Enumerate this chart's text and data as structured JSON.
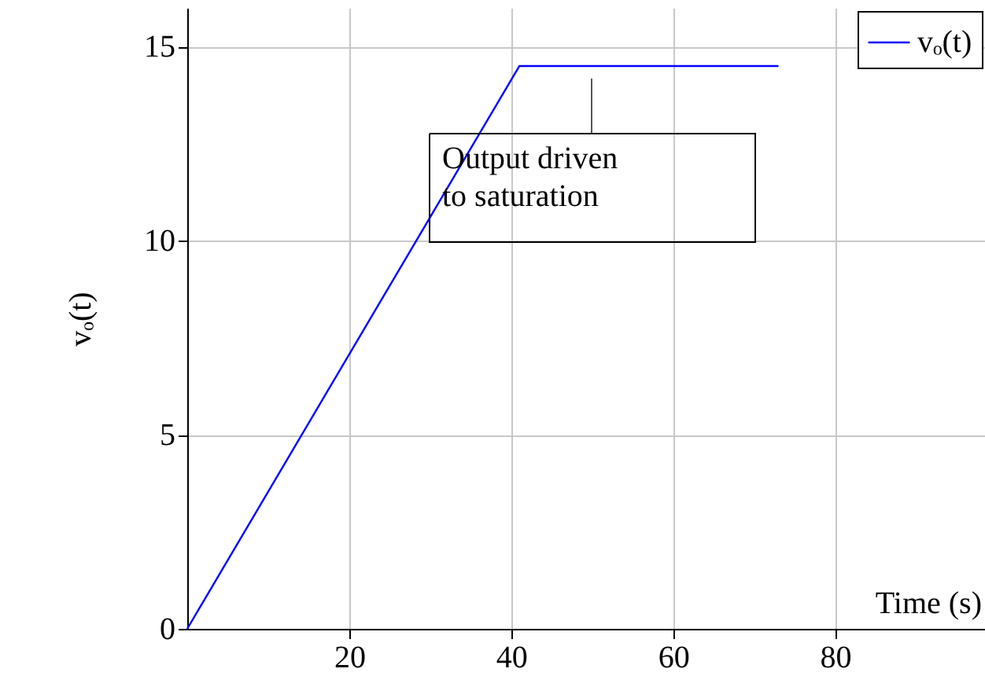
{
  "chart_data": {
    "type": "line",
    "xlabel": "Time (s)",
    "ylabel": "vₒ(t)",
    "x": [
      0,
      41,
      73
    ],
    "series": [
      {
        "name": "vₒ(t)",
        "color": "#0000ff",
        "values": [
          0,
          14.5,
          14.5
        ]
      }
    ],
    "xlim": [
      0,
      98.5
    ],
    "ylim": [
      0,
      16
    ],
    "xticks": [
      20,
      40,
      60,
      80
    ],
    "yticks": [
      0,
      5,
      10,
      15
    ],
    "grid": true,
    "legend": "top right",
    "marker": "none",
    "line_style": "solid",
    "annotations": [
      "Output driven\nto saturation"
    ]
  }
}
